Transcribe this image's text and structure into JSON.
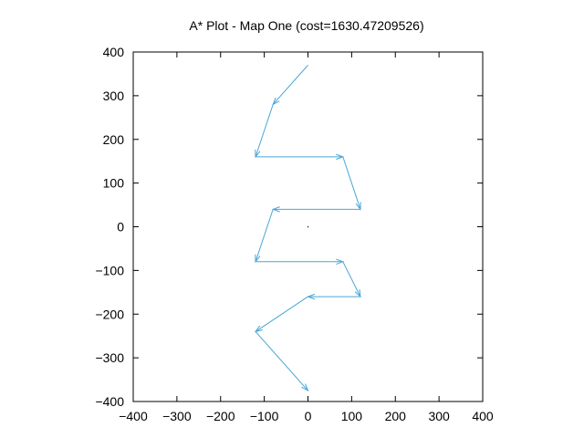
{
  "chart_data": {
    "type": "line",
    "title": "A* Plot - Map One (cost=1630.47209526)",
    "xlabel": "",
    "ylabel": "",
    "xlim": [
      -400,
      400
    ],
    "ylim": [
      -400,
      400
    ],
    "x_ticks": [
      -400,
      -300,
      -200,
      -100,
      0,
      100,
      200,
      300,
      400
    ],
    "y_ticks": [
      -400,
      -300,
      -200,
      -100,
      0,
      100,
      200,
      300,
      400
    ],
    "grid": false,
    "legend": "none",
    "series": [
      {
        "color": "#4aa6d6",
        "style": "vectors",
        "points": [
          {
            "x": 0,
            "y": 370
          },
          {
            "x": -80,
            "y": 280
          },
          {
            "x": -120,
            "y": 160
          },
          {
            "x": 80,
            "y": 160
          },
          {
            "x": 120,
            "y": 40
          },
          {
            "x": -80,
            "y": 40
          },
          {
            "x": -120,
            "y": -80
          },
          {
            "x": 80,
            "y": -80
          },
          {
            "x": 120,
            "y": -160
          },
          {
            "x": 0,
            "y": -160
          },
          {
            "x": -120,
            "y": -240
          },
          {
            "x": 0,
            "y": -375
          }
        ]
      }
    ],
    "markers": [
      {
        "x": 0,
        "y": 0,
        "color": "#000000"
      }
    ]
  }
}
